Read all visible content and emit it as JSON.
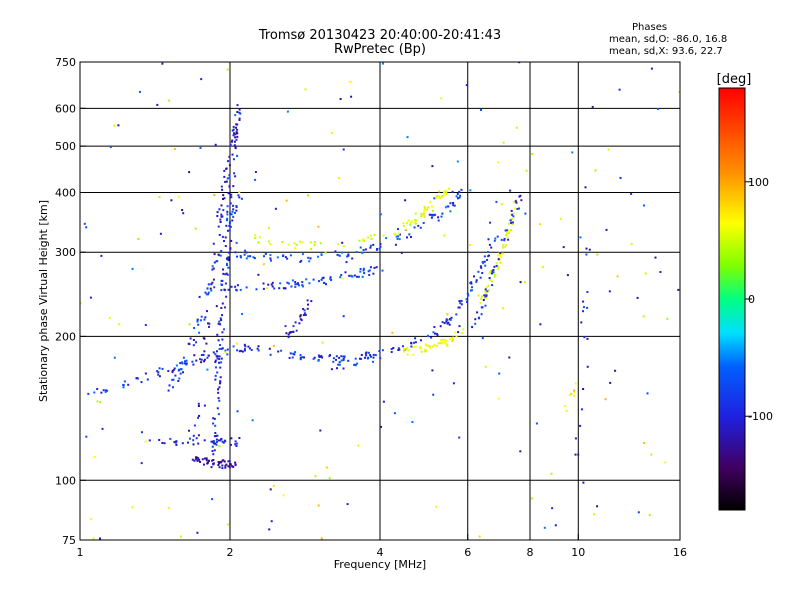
{
  "chart_data": {
    "type": "scatter",
    "title": "Tromsø 20130423 20:40:00-20:41:43",
    "subtitle": "RwPretec (Bp)",
    "xlabel": "Frequency [MHz]",
    "ylabel": "Stationary phase Virtual Height [km]",
    "x_scale": "log",
    "y_scale": "log",
    "xlim": [
      1,
      16
    ],
    "ylim": [
      75,
      750
    ],
    "x_ticks": [
      1,
      2,
      4,
      6,
      8,
      10,
      16
    ],
    "x_grid": [
      2,
      4,
      6,
      8,
      10
    ],
    "y_ticks": [
      75,
      100,
      200,
      300,
      400,
      500,
      600,
      750
    ],
    "y_grid": [
      100,
      200,
      300,
      400,
      500,
      600
    ],
    "grid": true,
    "colorbar": {
      "label": "[deg]",
      "range": [
        -180,
        180
      ],
      "ticks": [
        100,
        0,
        -100
      ]
    },
    "stats": {
      "heading": "Phases",
      "line_o": "mean, sd,O: -86.0, 16.8",
      "line_x": "mean, sd,X:  93.6, 22.7"
    },
    "traces": [
      {
        "curve": [
          [
            1.0,
            150
          ],
          [
            1.3,
            162
          ],
          [
            1.6,
            175
          ],
          [
            1.9,
            185
          ],
          [
            2.2,
            190
          ]
        ],
        "phase": -95,
        "n": 60
      },
      {
        "curve": [
          [
            1.85,
            110
          ],
          [
            1.9,
            180
          ],
          [
            1.95,
            260
          ],
          [
            2.0,
            360
          ],
          [
            2.05,
            520
          ]
        ],
        "phase": -100,
        "n": 110
      },
      {
        "curve": [
          [
            1.7,
            110
          ],
          [
            1.9,
            108
          ],
          [
            2.05,
            108
          ]
        ],
        "phase": -120,
        "n": 55
      },
      {
        "curve": [
          [
            1.4,
            120
          ],
          [
            1.8,
            122
          ],
          [
            2.1,
            120
          ]
        ],
        "phase": -100,
        "n": 40
      },
      {
        "curve": [
          [
            2.0,
            250
          ],
          [
            2.5,
            255
          ],
          [
            3.0,
            260
          ],
          [
            3.5,
            270
          ],
          [
            4.0,
            275
          ]
        ],
        "phase": -95,
        "n": 70
      },
      {
        "curve": [
          [
            2.0,
            300
          ],
          [
            2.5,
            290
          ],
          [
            3.0,
            293
          ],
          [
            3.5,
            300
          ],
          [
            4.0,
            310
          ],
          [
            4.6,
            330
          ],
          [
            5.5,
            370
          ],
          [
            5.8,
            400
          ]
        ],
        "phase": -90,
        "n": 95
      },
      {
        "curve": [
          [
            2.2,
            320
          ],
          [
            2.8,
            310
          ],
          [
            3.5,
            315
          ],
          [
            4.5,
            340
          ],
          [
            5.2,
            375
          ]
        ],
        "phase": 80,
        "n": 40
      },
      {
        "curve": [
          [
            2.0,
            190
          ],
          [
            2.5,
            185
          ],
          [
            3.0,
            180
          ],
          [
            3.5,
            180
          ],
          [
            4.0,
            185
          ]
        ],
        "phase": -100,
        "n": 55
      },
      {
        "curve": [
          [
            3.0,
            170
          ],
          [
            3.5,
            175
          ],
          [
            4.0,
            182
          ],
          [
            4.5,
            190
          ],
          [
            5.0,
            200
          ],
          [
            5.5,
            215
          ],
          [
            6.0,
            245
          ],
          [
            6.5,
            290
          ],
          [
            6.8,
            330
          ]
        ],
        "phase": -95,
        "n": 95
      },
      {
        "curve": [
          [
            4.5,
            185
          ],
          [
            5.0,
            190
          ],
          [
            5.5,
            195
          ],
          [
            6.0,
            210
          ]
        ],
        "phase": 95,
        "n": 45
      },
      {
        "curve": [
          [
            6.3,
            235
          ],
          [
            6.7,
            260
          ],
          [
            7.0,
            300
          ],
          [
            7.3,
            350
          ],
          [
            7.5,
            380
          ]
        ],
        "phase": 90,
        "n": 50
      },
      {
        "curve": [
          [
            6.1,
            200
          ],
          [
            6.5,
            245
          ],
          [
            7.0,
            300
          ],
          [
            7.4,
            360
          ],
          [
            7.7,
            400
          ]
        ],
        "phase": -100,
        "n": 45
      },
      {
        "curve": [
          [
            4.2,
            320
          ],
          [
            4.7,
            350
          ],
          [
            5.2,
            390
          ],
          [
            5.6,
            410
          ]
        ],
        "phase": 90,
        "n": 40
      },
      {
        "curve": [
          [
            1.7,
            120
          ],
          [
            1.8,
            220
          ],
          [
            1.9,
            350
          ],
          [
            2.0,
            480
          ],
          [
            2.1,
            600
          ]
        ],
        "phase": -110,
        "n": 90
      },
      {
        "curve": [
          [
            1.5,
            150
          ],
          [
            1.7,
            200
          ],
          [
            1.9,
            290
          ],
          [
            2.1,
            400
          ]
        ],
        "phase": -95,
        "n": 60
      },
      {
        "curve": [
          [
            2.6,
            200
          ],
          [
            2.8,
            220
          ],
          [
            2.9,
            240
          ]
        ],
        "phase": -110,
        "n": 25
      },
      {
        "curve": [
          [
            10.0,
            110
          ],
          [
            10.2,
            200
          ],
          [
            10.5,
            320
          ]
        ],
        "phase": -100,
        "n": 12
      },
      {
        "curve": [
          [
            9.5,
            140
          ],
          [
            9.7,
            150
          ],
          [
            9.8,
            160
          ]
        ],
        "phase": 110,
        "n": 8
      }
    ],
    "scatter_noise_count": 220
  }
}
